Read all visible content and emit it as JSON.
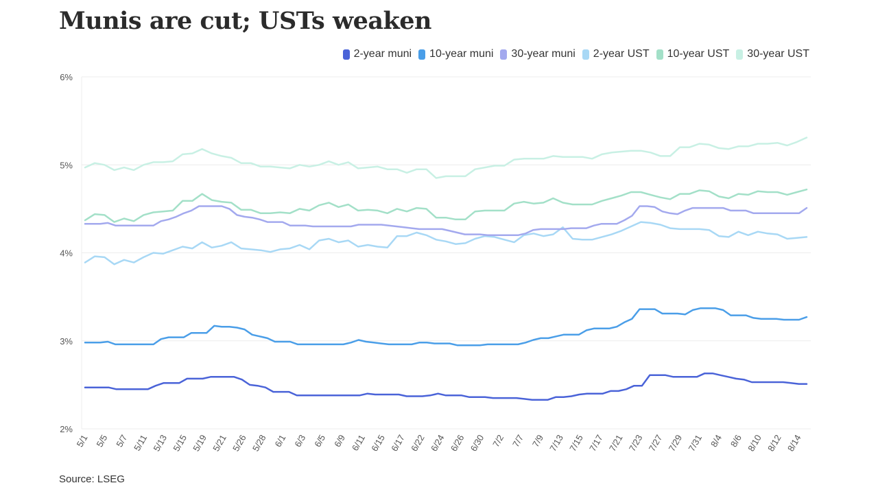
{
  "title": "Munis are cut; USTs weaken",
  "source": "Source: LSEG",
  "chart_data": {
    "type": "line",
    "title": "Munis are cut; USTs weaken",
    "xlabel": "",
    "ylabel": "",
    "ylim": [
      2,
      6
    ],
    "y_ticks": [
      "2%",
      "3%",
      "4%",
      "5%",
      "6%"
    ],
    "y_tick_values": [
      2,
      3,
      4,
      5,
      6
    ],
    "grid": true,
    "legend_position": "top-right",
    "x_tick_labels": [
      "5/1",
      "5/5",
      "5/7",
      "5/11",
      "5/13",
      "5/15",
      "5/19",
      "5/21",
      "5/26",
      "5/28",
      "6/1",
      "6/3",
      "6/5",
      "6/9",
      "6/11",
      "6/15",
      "6/17",
      "6/22",
      "6/24",
      "6/26",
      "6/30",
      "7/2",
      "7/7",
      "7/9",
      "7/13",
      "7/15",
      "7/17",
      "7/21",
      "7/23",
      "7/27",
      "7/29",
      "7/31",
      "8/4",
      "8/6",
      "8/10",
      "8/12",
      "8/14"
    ],
    "x_count": 77,
    "series": [
      {
        "name": "2-year muni",
        "color": "#4a63d8",
        "values": [
          2.47,
          2.47,
          2.47,
          2.47,
          2.45,
          2.45,
          2.45,
          2.45,
          2.45,
          2.49,
          2.52,
          2.52,
          2.52,
          2.57,
          2.57,
          2.57,
          2.59,
          2.59,
          2.59,
          2.59,
          2.56,
          2.5,
          2.49,
          2.47,
          2.42,
          2.42,
          2.42,
          2.38,
          2.38,
          2.38,
          2.38,
          2.38,
          2.38,
          2.38,
          2.38,
          2.38,
          2.4,
          2.39,
          2.39,
          2.39,
          2.39,
          2.37,
          2.37,
          2.37,
          2.38,
          2.4,
          2.38,
          2.38,
          2.38,
          2.36,
          2.36,
          2.36,
          2.35,
          2.35,
          2.35,
          2.35,
          2.34,
          2.33,
          2.33,
          2.33,
          2.36,
          2.36,
          2.37,
          2.39,
          2.4,
          2.4,
          2.4,
          2.43,
          2.43,
          2.45,
          2.49,
          2.49,
          2.61,
          2.61,
          2.61,
          2.59,
          2.59,
          2.59,
          2.59,
          2.63,
          2.63,
          2.61,
          2.59,
          2.57,
          2.56,
          2.53,
          2.53,
          2.53,
          2.53,
          2.53,
          2.52,
          2.51,
          2.51
        ]
      },
      {
        "name": "10-year muni",
        "color": "#4a9ee8",
        "values": [
          2.98,
          2.98,
          2.98,
          2.99,
          2.96,
          2.96,
          2.96,
          2.96,
          2.96,
          2.96,
          3.02,
          3.04,
          3.04,
          3.04,
          3.09,
          3.09,
          3.09,
          3.17,
          3.16,
          3.16,
          3.15,
          3.13,
          3.07,
          3.05,
          3.03,
          2.99,
          2.99,
          2.99,
          2.96,
          2.96,
          2.96,
          2.96,
          2.96,
          2.96,
          2.96,
          2.98,
          3.01,
          2.99,
          2.98,
          2.97,
          2.96,
          2.96,
          2.96,
          2.96,
          2.98,
          2.98,
          2.97,
          2.97,
          2.97,
          2.95,
          2.95,
          2.95,
          2.95,
          2.96,
          2.96,
          2.96,
          2.96,
          2.96,
          2.98,
          3.01,
          3.03,
          3.03,
          3.05,
          3.07,
          3.07,
          3.07,
          3.12,
          3.14,
          3.14,
          3.14,
          3.16,
          3.21,
          3.25,
          3.36,
          3.36,
          3.36,
          3.31,
          3.31,
          3.31,
          3.3,
          3.35,
          3.37,
          3.37,
          3.37,
          3.35,
          3.29,
          3.29,
          3.29,
          3.26,
          3.25,
          3.25,
          3.25,
          3.24,
          3.24,
          3.24,
          3.27
        ]
      },
      {
        "name": "30-year muni",
        "color": "#a3a9ee",
        "values": [
          4.33,
          4.33,
          4.33,
          4.34,
          4.31,
          4.31,
          4.31,
          4.31,
          4.31,
          4.31,
          4.36,
          4.38,
          4.41,
          4.45,
          4.48,
          4.53,
          4.53,
          4.53,
          4.53,
          4.5,
          4.43,
          4.41,
          4.4,
          4.38,
          4.35,
          4.35,
          4.35,
          4.31,
          4.31,
          4.31,
          4.3,
          4.3,
          4.3,
          4.3,
          4.3,
          4.3,
          4.32,
          4.32,
          4.32,
          4.32,
          4.31,
          4.3,
          4.29,
          4.28,
          4.27,
          4.27,
          4.27,
          4.27,
          4.25,
          4.23,
          4.21,
          4.21,
          4.21,
          4.2,
          4.2,
          4.2,
          4.2,
          4.2,
          4.22,
          4.26,
          4.27,
          4.27,
          4.27,
          4.27,
          4.28,
          4.28,
          4.28,
          4.31,
          4.33,
          4.33,
          4.33,
          4.37,
          4.42,
          4.53,
          4.53,
          4.52,
          4.47,
          4.45,
          4.44,
          4.48,
          4.51,
          4.51,
          4.51,
          4.51,
          4.51,
          4.48,
          4.48,
          4.48,
          4.45,
          4.45,
          4.45,
          4.45,
          4.45,
          4.45,
          4.45,
          4.51
        ]
      },
      {
        "name": "2-year UST",
        "color": "#a8d8f5",
        "values": [
          3.89,
          3.96,
          3.95,
          3.87,
          3.92,
          3.89,
          3.95,
          4.0,
          3.99,
          4.03,
          4.07,
          4.05,
          4.12,
          4.06,
          4.08,
          4.12,
          4.05,
          4.04,
          4.03,
          4.01,
          4.04,
          4.05,
          4.09,
          4.04,
          4.14,
          4.16,
          4.12,
          4.14,
          4.07,
          4.09,
          4.07,
          4.06,
          4.19,
          4.19,
          4.23,
          4.2,
          4.15,
          4.13,
          4.1,
          4.11,
          4.16,
          4.19,
          4.18,
          4.15,
          4.12,
          4.2,
          4.22,
          4.19,
          4.21,
          4.29,
          4.16,
          4.15,
          4.15,
          4.18,
          4.21,
          4.25,
          4.3,
          4.35,
          4.34,
          4.32,
          4.28,
          4.27,
          4.27,
          4.27,
          4.26,
          4.19,
          4.18,
          4.24,
          4.2,
          4.24,
          4.22,
          4.21,
          4.16,
          4.17,
          4.18
        ]
      },
      {
        "name": "10-year UST",
        "color": "#a3e0c8",
        "values": [
          4.37,
          4.44,
          4.43,
          4.35,
          4.39,
          4.36,
          4.43,
          4.46,
          4.47,
          4.48,
          4.59,
          4.59,
          4.67,
          4.6,
          4.58,
          4.57,
          4.49,
          4.49,
          4.45,
          4.45,
          4.46,
          4.45,
          4.5,
          4.48,
          4.54,
          4.57,
          4.52,
          4.55,
          4.48,
          4.49,
          4.48,
          4.45,
          4.5,
          4.47,
          4.51,
          4.5,
          4.4,
          4.4,
          4.38,
          4.38,
          4.47,
          4.48,
          4.48,
          4.48,
          4.56,
          4.58,
          4.56,
          4.57,
          4.62,
          4.57,
          4.55,
          4.55,
          4.55,
          4.59,
          4.62,
          4.65,
          4.69,
          4.69,
          4.66,
          4.63,
          4.61,
          4.67,
          4.67,
          4.71,
          4.7,
          4.64,
          4.62,
          4.67,
          4.66,
          4.7,
          4.69,
          4.69,
          4.66,
          4.69,
          4.72
        ]
      },
      {
        "name": "30-year UST",
        "color": "#c8f0e4",
        "values": [
          4.97,
          5.02,
          5.0,
          4.94,
          4.97,
          4.94,
          5.0,
          5.03,
          5.03,
          5.04,
          5.12,
          5.13,
          5.18,
          5.13,
          5.1,
          5.08,
          5.02,
          5.02,
          4.98,
          4.98,
          4.97,
          4.96,
          5.0,
          4.98,
          5.0,
          5.04,
          5.0,
          5.03,
          4.96,
          4.97,
          4.98,
          4.95,
          4.95,
          4.91,
          4.95,
          4.95,
          4.85,
          4.87,
          4.87,
          4.87,
          4.95,
          4.97,
          4.99,
          4.99,
          5.06,
          5.07,
          5.07,
          5.07,
          5.1,
          5.09,
          5.09,
          5.09,
          5.07,
          5.12,
          5.14,
          5.15,
          5.16,
          5.16,
          5.14,
          5.1,
          5.1,
          5.2,
          5.2,
          5.24,
          5.23,
          5.19,
          5.18,
          5.21,
          5.21,
          5.24,
          5.24,
          5.25,
          5.22,
          5.26,
          5.31
        ]
      }
    ]
  }
}
